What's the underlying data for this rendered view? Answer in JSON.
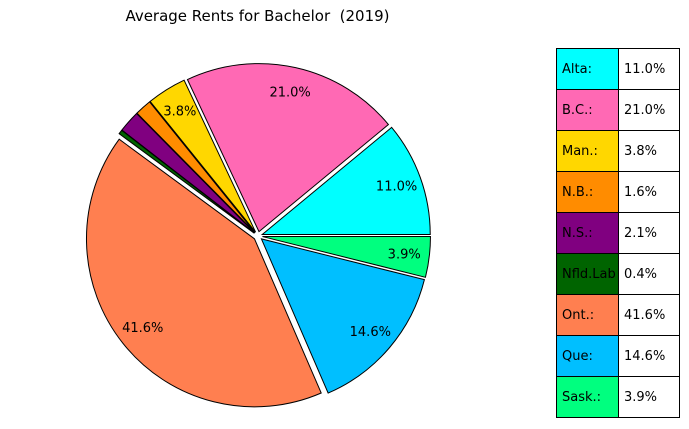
{
  "chart_data": {
    "type": "pie",
    "title": "Average Rents for Bachelor  (2019)",
    "slices": [
      {
        "label": "Alta:",
        "value": 11.0,
        "pct_label": "11.0%",
        "color": "#00ffff"
      },
      {
        "label": "B.C.:",
        "value": 21.0,
        "pct_label": "21.0%",
        "color": "#ff69b4"
      },
      {
        "label": "Man.:",
        "value": 3.8,
        "pct_label": "3.8%",
        "color": "#ffd700"
      },
      {
        "label": "N.B.:",
        "value": 1.6,
        "pct_label": "",
        "color": "#ff8c00"
      },
      {
        "label": "N.S.:",
        "value": 2.1,
        "pct_label": "",
        "color": "#800080"
      },
      {
        "label": "Nfld.Lab",
        "value": 0.4,
        "pct_label": "",
        "color": "#006400"
      },
      {
        "label": "Ont.:",
        "value": 41.6,
        "pct_label": "41.6%",
        "color": "#ff7f50"
      },
      {
        "label": "Que:",
        "value": 14.6,
        "pct_label": "14.6%",
        "color": "#00bfff"
      },
      {
        "label": "Sask.:",
        "value": 3.9,
        "pct_label": "3.9%",
        "color": "#00ff7f"
      }
    ],
    "legend": [
      {
        "label": "Alta:",
        "value": "11.0%"
      },
      {
        "label": "B.C.:",
        "value": "21.0%"
      },
      {
        "label": "Man.:",
        "value": "3.8%"
      },
      {
        "label": "N.B.:",
        "value": "1.6%"
      },
      {
        "label": "N.S.:",
        "value": "2.1%"
      },
      {
        "label": "Nfld.Lab",
        "value": "0.4%"
      },
      {
        "label": "Ont.:",
        "value": "41.6%"
      },
      {
        "label": "Que:",
        "value": "14.6%"
      },
      {
        "label": "Sask.:",
        "value": "3.9%"
      }
    ],
    "legend_placement": "right",
    "exploded": true
  }
}
